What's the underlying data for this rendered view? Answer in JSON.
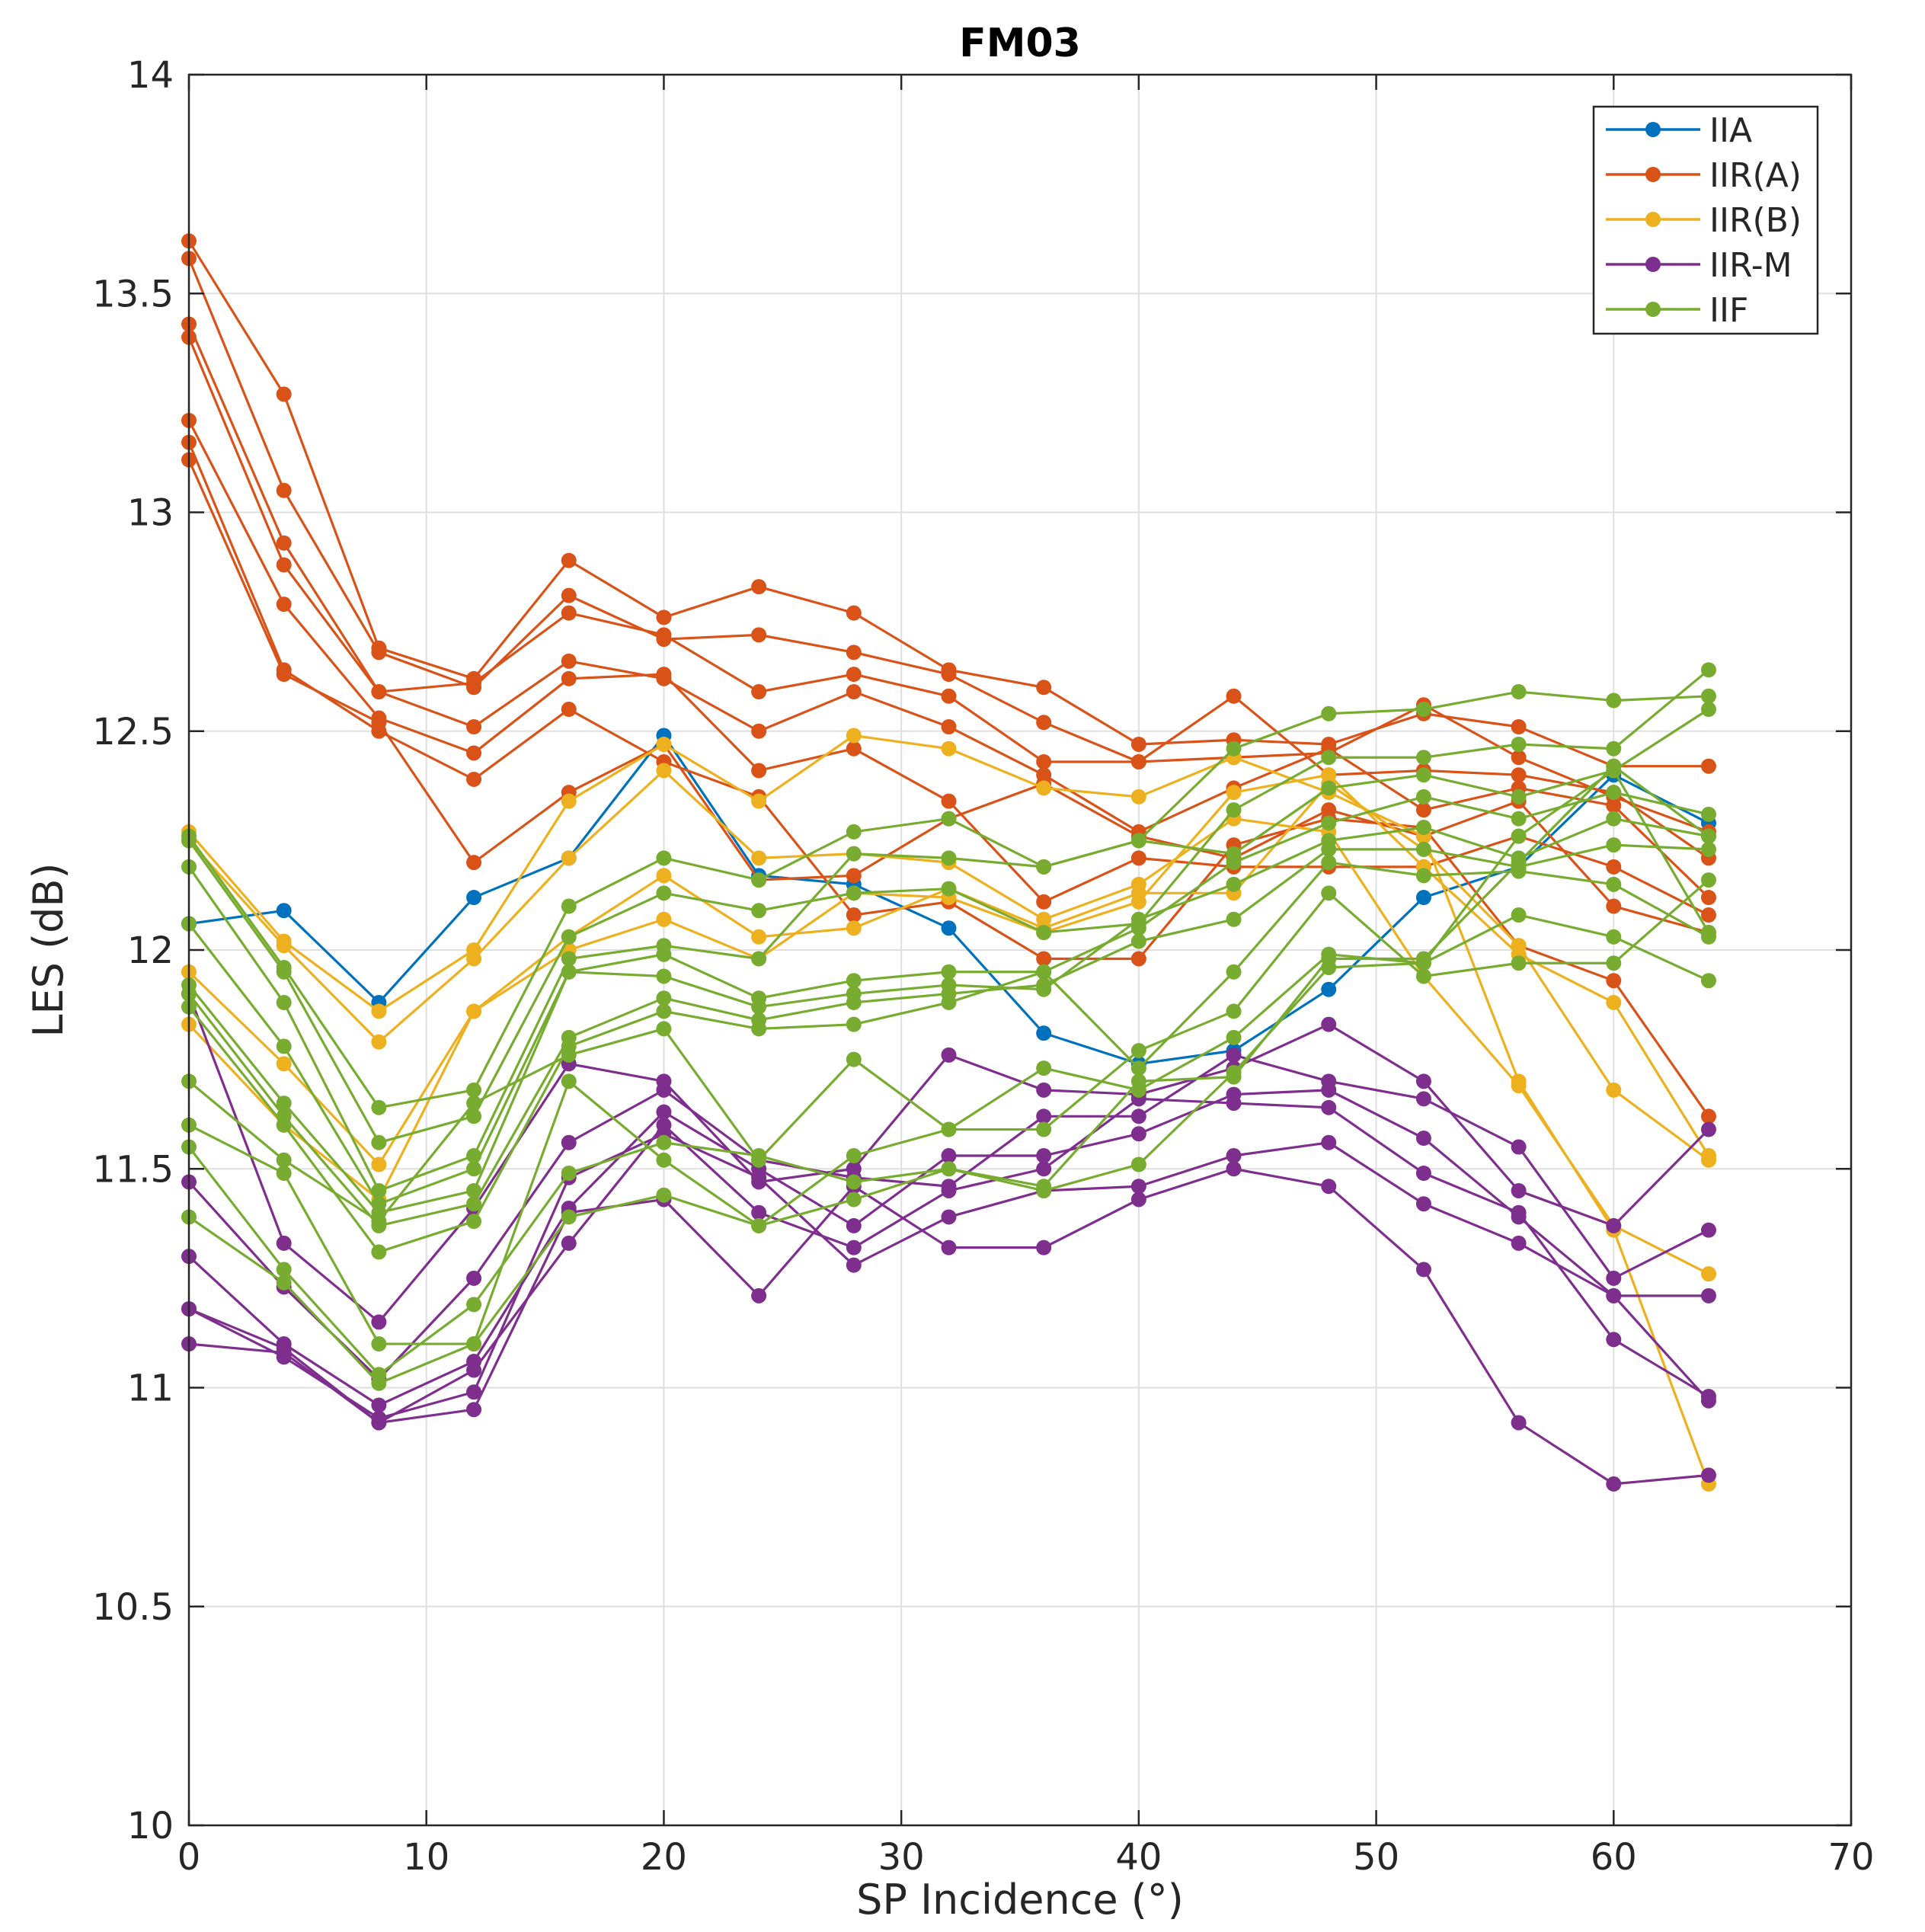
{
  "chart_data": {
    "type": "line",
    "title": "FM03",
    "xlabel": "SP Incidence (°)",
    "ylabel": "LES (dB)",
    "xlim": [
      0,
      70
    ],
    "ylim": [
      10,
      14
    ],
    "xticks": [
      0,
      10,
      20,
      30,
      40,
      50,
      60,
      70
    ],
    "yticks": [
      10,
      10.5,
      11,
      11.5,
      12,
      12.5,
      13,
      13.5,
      14
    ],
    "xtick_labels": [
      "0",
      "10",
      "20",
      "30",
      "40",
      "50",
      "60",
      "70"
    ],
    "ytick_labels": [
      "10",
      "10.5",
      "11",
      "11.5",
      "12",
      "12.5",
      "13",
      "13.5",
      "14"
    ],
    "grid": true,
    "legend_position": "top-right",
    "x": [
      0,
      4,
      8,
      12,
      16,
      20,
      24,
      28,
      32,
      36,
      40,
      44,
      48,
      52,
      56,
      60,
      64
    ],
    "groups": [
      {
        "name": "IIA",
        "color": "#0072BD",
        "series": [
          [
            12.06,
            12.09,
            11.88,
            12.12,
            12.21,
            12.49,
            12.17,
            12.15,
            12.05,
            11.81,
            11.74,
            11.77,
            11.91,
            12.12,
            12.19,
            12.4,
            12.29
          ]
        ]
      },
      {
        "name": "IIR(A)",
        "color": "#D95319",
        "series": [
          [
            13.62,
            13.27,
            12.69,
            12.62,
            12.89,
            12.76,
            12.83,
            12.77,
            12.64,
            12.6,
            12.47,
            12.48,
            12.47,
            12.54,
            12.51,
            12.42,
            12.42
          ],
          [
            13.58,
            13.05,
            12.68,
            12.6,
            12.81,
            12.71,
            12.72,
            12.68,
            12.63,
            12.52,
            12.43,
            12.44,
            12.45,
            12.56,
            12.44,
            12.35,
            12.27
          ],
          [
            13.43,
            12.93,
            12.59,
            12.61,
            12.77,
            12.72,
            12.59,
            12.63,
            12.58,
            12.43,
            12.43,
            12.58,
            12.4,
            12.41,
            12.4,
            12.36,
            12.21
          ],
          [
            13.4,
            12.88,
            12.59,
            12.51,
            12.66,
            12.62,
            12.5,
            12.59,
            12.51,
            12.4,
            12.27,
            12.37,
            12.46,
            12.32,
            12.37,
            12.33,
            12.12
          ],
          [
            13.21,
            12.79,
            12.53,
            12.45,
            12.62,
            12.63,
            12.41,
            12.46,
            12.34,
            12.11,
            12.21,
            12.19,
            12.19,
            12.19,
            12.26,
            12.19,
            12.08
          ],
          [
            13.16,
            12.64,
            12.5,
            12.39,
            12.55,
            12.43,
            12.35,
            12.08,
            12.11,
            11.98,
            11.98,
            12.24,
            12.3,
            12.28,
            12.01,
            11.93,
            11.62
          ],
          [
            13.12,
            12.63,
            12.52,
            12.2,
            12.36,
            12.47,
            12.16,
            12.17,
            12.3,
            12.38,
            12.26,
            12.21,
            12.32,
            12.26,
            12.34,
            12.1,
            12.04
          ]
        ]
      },
      {
        "name": "IIR(B)",
        "color": "#EDB120",
        "series": [
          [
            12.27,
            12.02,
            11.86,
            12.0,
            12.34,
            12.47,
            12.34,
            12.49,
            12.46,
            12.37,
            12.35,
            12.44,
            12.36,
            12.26,
            11.7,
            11.36,
            10.78
          ],
          [
            12.25,
            12.01,
            11.79,
            11.98,
            12.21,
            12.41,
            12.21,
            12.22,
            12.2,
            12.07,
            12.15,
            12.3,
            12.27,
            11.94,
            11.69,
            11.37,
            11.26
          ],
          [
            11.95,
            11.74,
            11.51,
            11.86,
            12.03,
            12.17,
            12.03,
            12.05,
            12.14,
            12.05,
            12.13,
            12.13,
            12.38,
            12.23,
            12.01,
            11.68,
            11.52
          ],
          [
            11.83,
            11.6,
            11.43,
            11.86,
            12.0,
            12.07,
            11.98,
            12.13,
            12.12,
            12.04,
            12.11,
            12.36,
            12.4,
            12.19,
            11.99,
            11.88,
            11.53
          ]
        ]
      },
      {
        "name": "IIR-M",
        "color": "#7E2F8E",
        "series": [
          [
            11.9,
            11.33,
            11.15,
            11.41,
            11.74,
            11.7,
            11.47,
            11.5,
            11.76,
            11.68,
            11.67,
            11.73,
            11.83,
            11.7,
            11.45,
            11.37,
            11.59
          ],
          [
            11.47,
            11.23,
            11.02,
            11.25,
            11.56,
            11.68,
            11.52,
            11.48,
            11.46,
            11.62,
            11.62,
            11.76,
            11.7,
            11.66,
            11.55,
            11.25,
            11.36
          ],
          [
            11.3,
            11.1,
            10.96,
            11.06,
            11.41,
            11.63,
            11.5,
            11.37,
            11.53,
            11.53,
            11.58,
            11.67,
            11.68,
            11.57,
            11.39,
            11.21,
            11.21
          ],
          [
            11.18,
            11.09,
            10.92,
            11.04,
            11.33,
            11.6,
            11.4,
            11.32,
            11.45,
            11.5,
            11.66,
            11.65,
            11.64,
            11.49,
            11.4,
            11.11,
            10.98
          ],
          [
            11.18,
            11.07,
            10.93,
            10.99,
            11.48,
            11.58,
            11.48,
            11.28,
            11.39,
            11.45,
            11.46,
            11.53,
            11.56,
            11.42,
            11.33,
            11.21,
            10.97
          ],
          [
            11.1,
            11.08,
            10.92,
            10.95,
            11.4,
            11.43,
            11.21,
            11.46,
            11.32,
            11.32,
            11.43,
            11.5,
            11.46,
            11.27,
            10.92,
            10.78,
            10.8
          ]
        ]
      },
      {
        "name": "IIF",
        "color": "#77AC30",
        "series": [
          [
            12.26,
            11.96,
            11.64,
            11.68,
            12.1,
            12.21,
            12.16,
            12.27,
            12.3,
            12.19,
            12.25,
            12.46,
            12.54,
            12.55,
            12.59,
            12.57,
            12.58
          ],
          [
            12.25,
            11.95,
            11.56,
            11.62,
            12.03,
            12.13,
            12.09,
            12.13,
            12.14,
            12.04,
            12.06,
            12.32,
            12.44,
            12.44,
            12.47,
            12.46,
            12.64
          ],
          [
            12.19,
            11.88,
            11.45,
            11.53,
            11.98,
            12.01,
            11.98,
            12.22,
            12.21,
            12.19,
            12.25,
            12.22,
            12.37,
            12.4,
            12.35,
            12.41,
            12.55
          ],
          [
            12.06,
            11.78,
            11.42,
            11.5,
            11.95,
            11.99,
            11.89,
            11.93,
            11.95,
            11.95,
            12.05,
            12.2,
            12.29,
            12.35,
            12.3,
            12.36,
            12.31
          ],
          [
            11.92,
            11.65,
            11.4,
            11.45,
            11.95,
            11.94,
            11.87,
            11.9,
            11.92,
            11.91,
            12.07,
            12.15,
            12.25,
            12.28,
            12.21,
            12.3,
            12.26
          ],
          [
            11.9,
            11.62,
            11.37,
            11.42,
            11.8,
            11.89,
            11.84,
            11.88,
            11.9,
            11.92,
            12.02,
            12.07,
            12.23,
            12.23,
            12.19,
            12.24,
            12.23
          ],
          [
            11.87,
            11.6,
            11.31,
            11.38,
            11.78,
            11.86,
            11.82,
            11.83,
            11.88,
            11.95,
            11.73,
            11.95,
            12.2,
            12.17,
            12.18,
            12.15,
            12.03
          ],
          [
            11.7,
            11.52,
            11.38,
            11.65,
            11.76,
            11.82,
            11.52,
            11.75,
            11.59,
            11.73,
            11.68,
            11.8,
            11.99,
            11.97,
            12.08,
            12.03,
            11.93
          ],
          [
            11.6,
            11.49,
            11.1,
            11.1,
            11.7,
            11.52,
            11.37,
            11.53,
            11.59,
            11.59,
            11.77,
            11.86,
            12.13,
            11.94,
            11.97,
            11.97,
            12.16
          ],
          [
            11.55,
            11.27,
            11.03,
            11.19,
            11.49,
            11.56,
            11.53,
            11.47,
            11.5,
            11.45,
            11.51,
            11.72,
            11.96,
            11.97,
            12.26,
            12.41,
            12.04
          ],
          [
            11.39,
            11.24,
            11.01,
            11.1,
            11.39,
            11.44,
            11.37,
            11.43,
            11.5,
            11.46,
            11.7,
            11.71,
            11.98,
            11.98,
            12.2,
            12.42,
            12.26
          ]
        ]
      }
    ]
  }
}
